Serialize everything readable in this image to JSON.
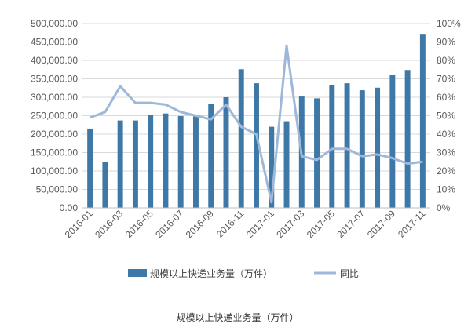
{
  "chart_data": {
    "type": "bar",
    "categories": [
      "2016-01",
      "2016-02",
      "2016-03",
      "2016-04",
      "2016-05",
      "2016-06",
      "2016-07",
      "2016-08",
      "2016-09",
      "2016-10",
      "2016-11",
      "2016-12",
      "2017-01",
      "2017-02",
      "2017-03",
      "2017-04",
      "2017-05",
      "2017-06",
      "2017-07",
      "2017-08",
      "2017-09",
      "2017-10",
      "2017-11"
    ],
    "x_tick_labels": [
      "2016-01",
      "2016-03",
      "2016-05",
      "2016-07",
      "2016-09",
      "2016-11",
      "2017-01",
      "2017-03",
      "2017-05",
      "2017-07",
      "2017-09",
      "2017-11"
    ],
    "series": [
      {
        "name": "规模以上快递业务量（万件）",
        "type": "bar",
        "axis": "left",
        "color": "#3e78a6",
        "values": [
          215000,
          124000,
          237000,
          237000,
          251000,
          256000,
          249000,
          248000,
          281000,
          300000,
          376000,
          338000,
          220000,
          235000,
          302000,
          297000,
          333000,
          338000,
          319000,
          326000,
          360000,
          374000,
          472000
        ]
      },
      {
        "name": "同比",
        "type": "line",
        "axis": "right",
        "color": "#9fb8d9",
        "values": [
          0.49,
          0.52,
          0.66,
          0.57,
          0.57,
          0.56,
          0.52,
          0.5,
          0.48,
          0.56,
          0.44,
          0.4,
          0.03,
          0.88,
          0.28,
          0.26,
          0.32,
          0.32,
          0.28,
          0.29,
          0.27,
          0.24,
          0.25
        ]
      }
    ],
    "y_left": {
      "min": 0,
      "max": 500000,
      "step": 50000,
      "tick_labels": [
        "0.00",
        "50,000.00",
        "100,000.00",
        "150,000.00",
        "200,000.00",
        "250,000.00",
        "300,000.00",
        "350,000.00",
        "400,000.00",
        "450,000.00",
        "500,000.00"
      ]
    },
    "y_right": {
      "min": 0,
      "max": 1.0,
      "step": 0.1,
      "tick_labels": [
        "0%",
        "10%",
        "20%",
        "30%",
        "40%",
        "50%",
        "60%",
        "70%",
        "80%",
        "90%",
        "100%"
      ]
    },
    "grid": true,
    "legend_position": "bottom",
    "caption": "规模以上快递业务量（万件）"
  }
}
